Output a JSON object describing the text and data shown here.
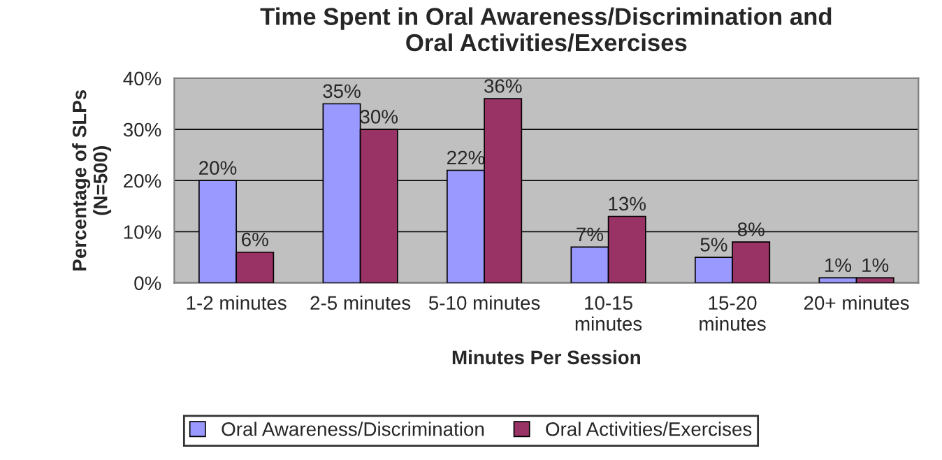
{
  "chart_data": {
    "type": "bar",
    "title": "Time Spent in Oral Awareness/Discrimination and\nOral Activities/Exercises",
    "xlabel": "Minutes Per Session",
    "ylabel": "Percentage of SLPs\n(N=500)",
    "categories": [
      "1-2 minutes",
      "2-5 minutes",
      "5-10 minutes",
      "10-15\nminutes",
      "15-20\nminutes",
      "20+ minutes"
    ],
    "series": [
      {
        "name": "Oral Awareness/Discrimination",
        "color": "#9999ff",
        "values": [
          20,
          35,
          22,
          7,
          5,
          1
        ],
        "value_labels": [
          "20%",
          "35%",
          "22%",
          "7%",
          "5%",
          "1%"
        ]
      },
      {
        "name": "Oral Activities/Exercises",
        "color": "#993366",
        "values": [
          6,
          30,
          36,
          13,
          8,
          1
        ],
        "value_labels": [
          "6%",
          "30%",
          "36%",
          "13%",
          "8%",
          "1%"
        ]
      }
    ],
    "ylim": [
      0,
      40
    ],
    "yticks": [
      {
        "value": 0,
        "label": "0%"
      },
      {
        "value": 10,
        "label": "10%"
      },
      {
        "value": 20,
        "label": "20%"
      },
      {
        "value": 30,
        "label": "30%"
      },
      {
        "value": 40,
        "label": "40%"
      }
    ],
    "grid": "y",
    "legend": "bottom"
  }
}
